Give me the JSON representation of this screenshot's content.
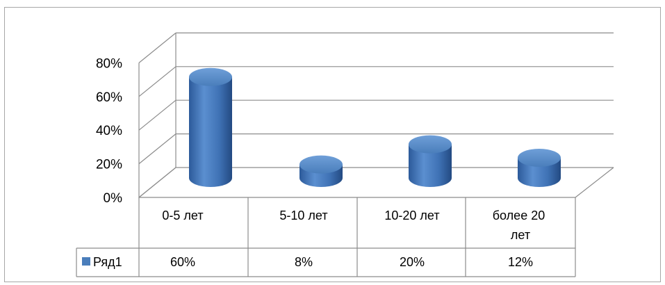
{
  "chart_data": {
    "type": "bar",
    "style": "3d-cylinder",
    "categories": [
      "0-5 лет",
      "5-10 лет",
      "10-20 лет",
      "более 20 лет"
    ],
    "series": [
      {
        "name": "Ряд1",
        "values": [
          60,
          8,
          20,
          12
        ],
        "labels": [
          "60%",
          "8%",
          "20%",
          "12%"
        ],
        "color": "#4a7ebb"
      }
    ],
    "ylim": [
      0,
      80
    ],
    "yticks": [
      0,
      20,
      40,
      60,
      80
    ],
    "ytick_labels": [
      "0%",
      "20%",
      "40%",
      "60%",
      "80%"
    ],
    "grid": true,
    "legend": "data-table"
  }
}
